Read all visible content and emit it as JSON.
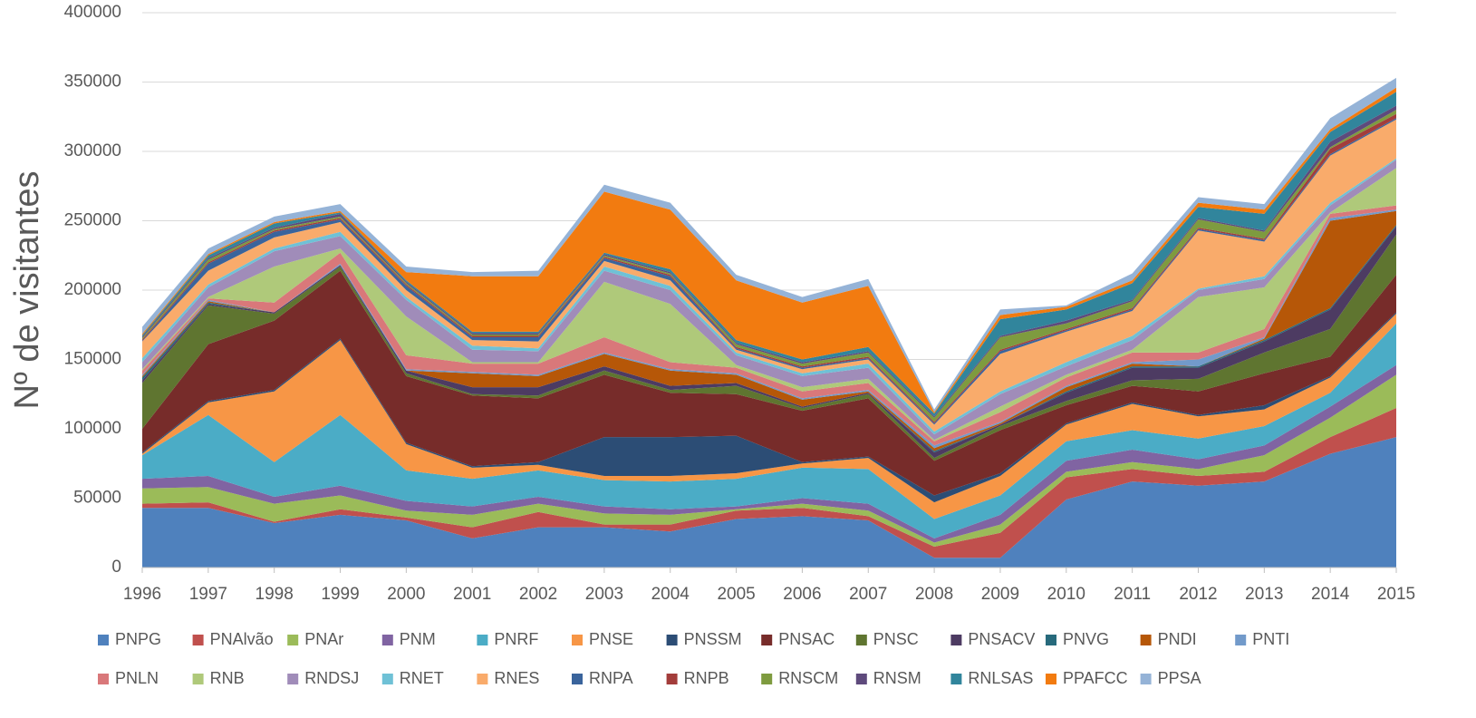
{
  "chart_data": {
    "type": "stacked_area",
    "y_label": "Nº de visitantes",
    "categories": [
      "1996",
      "1997",
      "1998",
      "1999",
      "2000",
      "2001",
      "2002",
      "2003",
      "2004",
      "2005",
      "2006",
      "2007",
      "2008",
      "2009",
      "2010",
      "2011",
      "2012",
      "2013",
      "2014",
      "2015"
    ],
    "ylim": [
      0,
      400000
    ],
    "yticks": [
      0,
      50000,
      100000,
      150000,
      200000,
      250000,
      300000,
      350000,
      400000
    ],
    "grid": true,
    "legend": "bottom",
    "series": [
      {
        "name": "PNPG",
        "color": "#4f81bd",
        "values": [
          43000,
          43000,
          32000,
          38000,
          34000,
          21000,
          29000,
          29000,
          26000,
          35000,
          37000,
          34000,
          7000,
          7000,
          49000,
          62000,
          59000,
          62000,
          82000,
          94000
        ]
      },
      {
        "name": "PNAlvão",
        "color": "#c0504d",
        "values": [
          3000,
          4000,
          1000,
          4000,
          2000,
          8000,
          11000,
          2000,
          5000,
          6000,
          6000,
          3000,
          8000,
          18000,
          16000,
          9000,
          7000,
          7000,
          12000,
          21000
        ]
      },
      {
        "name": "PNAr",
        "color": "#9bbb59",
        "values": [
          11000,
          11000,
          13000,
          10000,
          5000,
          9000,
          6000,
          8000,
          7000,
          1000,
          3000,
          4000,
          3000,
          6000,
          4000,
          5000,
          5000,
          12000,
          14000,
          24000
        ]
      },
      {
        "name": "PNM",
        "color": "#8064a2",
        "values": [
          7000,
          8000,
          5000,
          7000,
          7000,
          6000,
          5000,
          5000,
          4000,
          2000,
          4000,
          5000,
          3000,
          7000,
          8000,
          9000,
          7000,
          7000,
          8000,
          7000
        ]
      },
      {
        "name": "PNRF",
        "color": "#4bacc6",
        "values": [
          17000,
          44000,
          25000,
          51000,
          22000,
          20000,
          19000,
          19000,
          20000,
          20000,
          22000,
          25000,
          14000,
          14000,
          14000,
          14000,
          15000,
          14000,
          10000,
          30000
        ]
      },
      {
        "name": "PNSE",
        "color": "#f79646",
        "values": [
          1000,
          9000,
          51000,
          54000,
          19000,
          8000,
          4000,
          3000,
          4000,
          4000,
          3000,
          8000,
          12000,
          14000,
          12000,
          19000,
          16000,
          12000,
          11000,
          7000
        ]
      },
      {
        "name": "PNSSM",
        "color": "#2c4d75",
        "values": [
          1000,
          1000,
          1000,
          1000,
          1000,
          1000,
          2000,
          28000,
          28000,
          27000,
          1000,
          1000,
          5000,
          2000,
          1000,
          1000,
          1000,
          3000,
          1000,
          1000
        ]
      },
      {
        "name": "PNSAC",
        "color": "#772c2a",
        "values": [
          17000,
          41000,
          50000,
          49000,
          48000,
          51000,
          46000,
          45000,
          32000,
          30000,
          37000,
          42000,
          25000,
          31000,
          13000,
          12000,
          17000,
          23000,
          14000,
          27000
        ]
      },
      {
        "name": "PNSC",
        "color": "#5f7530",
        "values": [
          33000,
          28000,
          5000,
          3000,
          2000,
          1000,
          2000,
          3000,
          2000,
          6000,
          2000,
          3000,
          2000,
          3000,
          3000,
          4000,
          9000,
          15000,
          20000,
          29000
        ]
      },
      {
        "name": "PNSACV",
        "color": "#4d3b62",
        "values": [
          2000,
          1000,
          1000,
          1000,
          2000,
          5000,
          6000,
          3000,
          3000,
          2000,
          1000,
          1000,
          4000,
          1000,
          6000,
          9000,
          8000,
          8000,
          14000,
          6000
        ]
      },
      {
        "name": "PNVG",
        "color": "#276a7c",
        "values": [
          2000,
          1000,
          0,
          0,
          0,
          0,
          0,
          0,
          0,
          0,
          0,
          0,
          1000,
          0,
          1000,
          1000,
          1000,
          1000,
          1000,
          1000
        ]
      },
      {
        "name": "PNDI",
        "color": "#b65708",
        "values": [
          1000,
          1000,
          0,
          0,
          0,
          10000,
          8000,
          9000,
          11000,
          6000,
          5000,
          1000,
          2000,
          1000,
          3000,
          2000,
          0,
          1000,
          63000,
          10000
        ]
      },
      {
        "name": "PNTI",
        "color": "#729aca",
        "values": [
          1000,
          1000,
          0,
          1000,
          1000,
          1000,
          1000,
          1000,
          1000,
          1000,
          1000,
          1000,
          2000,
          1000,
          1000,
          1000,
          5000,
          1000,
          2000,
          1000
        ]
      },
      {
        "name": "PNLN",
        "color": "#d9787a",
        "values": [
          3000,
          1000,
          7000,
          8000,
          10000,
          6000,
          8000,
          11000,
          5000,
          4000,
          5000,
          5000,
          3000,
          7000,
          6000,
          7000,
          5000,
          6000,
          3000,
          3000
        ]
      },
      {
        "name": "RNB",
        "color": "#afc97a",
        "values": [
          1000,
          1000,
          26000,
          3000,
          28000,
          1000,
          1000,
          40000,
          42000,
          2000,
          3000,
          3000,
          1000,
          4000,
          2000,
          2000,
          40000,
          30000,
          1000,
          27000
        ]
      },
      {
        "name": "RNDSJ",
        "color": "#a08cb9",
        "values": [
          5000,
          7000,
          11000,
          9000,
          12000,
          9000,
          8000,
          8000,
          10000,
          7000,
          8000,
          8000,
          4000,
          9000,
          6000,
          7000,
          5000,
          6000,
          5000,
          6000
        ]
      },
      {
        "name": "RNET",
        "color": "#6fc1d6",
        "values": [
          3000,
          2000,
          2000,
          3000,
          2000,
          3000,
          2000,
          3000,
          3000,
          2000,
          2000,
          3000,
          2000,
          2000,
          3000,
          3000,
          1000,
          2000,
          2000,
          1000
        ]
      },
      {
        "name": "RNES",
        "color": "#f9ab6b",
        "values": [
          12000,
          10000,
          8000,
          7000,
          5000,
          4000,
          5000,
          4000,
          4000,
          2000,
          3000,
          3000,
          5000,
          27000,
          22000,
          18000,
          42000,
          25000,
          34000,
          28000
        ]
      },
      {
        "name": "RNPA",
        "color": "#3a649c",
        "values": [
          500,
          5000,
          4000,
          2000,
          3000,
          2000,
          3000,
          2000,
          3000,
          1000,
          1000,
          1000,
          1000,
          2000,
          1000,
          1000,
          1000,
          1000,
          1000,
          1000
        ]
      },
      {
        "name": "RNPB",
        "color": "#a33d3b",
        "values": [
          1000,
          1000,
          1000,
          1000,
          1000,
          1000,
          1000,
          1000,
          1000,
          1000,
          1000,
          1000,
          1000,
          1000,
          1000,
          1000,
          1000,
          1000,
          4000,
          3000
        ]
      },
      {
        "name": "RNSCM",
        "color": "#7e9b3f",
        "values": [
          1000,
          2000,
          1000,
          1000,
          1000,
          1000,
          1000,
          1000,
          1000,
          2000,
          2000,
          3000,
          3000,
          9000,
          4000,
          5000,
          6000,
          5000,
          1000,
          3000
        ]
      },
      {
        "name": "RNSM",
        "color": "#5e4a7c",
        "values": [
          1000,
          1000,
          1000,
          2000,
          1000,
          1000,
          1000,
          1000,
          1000,
          1000,
          1000,
          1000,
          1000,
          1000,
          2000,
          1000,
          1000,
          1000,
          4000,
          3000
        ]
      },
      {
        "name": "RNLSAS",
        "color": "#31859c",
        "values": [
          1000,
          2000,
          3000,
          1000,
          1000,
          1000,
          1000,
          1000,
          2000,
          2000,
          2000,
          3000,
          2000,
          12000,
          8000,
          12000,
          8000,
          12000,
          7000,
          10000
        ]
      },
      {
        "name": "PPAFCC",
        "color": "#f27b10",
        "values": [
          1000,
          1000,
          1000,
          1000,
          6000,
          40000,
          40000,
          44000,
          43000,
          43000,
          41000,
          44000,
          1000,
          3000,
          2000,
          2000,
          3000,
          3000,
          2000,
          3000
        ]
      },
      {
        "name": "PPSA",
        "color": "#95b3d7",
        "values": [
          5000,
          4000,
          4000,
          5000,
          4000,
          3000,
          4000,
          5000,
          5000,
          4000,
          4000,
          5000,
          2000,
          4000,
          1000,
          5000,
          4000,
          4000,
          8000,
          7000
        ]
      }
    ]
  }
}
